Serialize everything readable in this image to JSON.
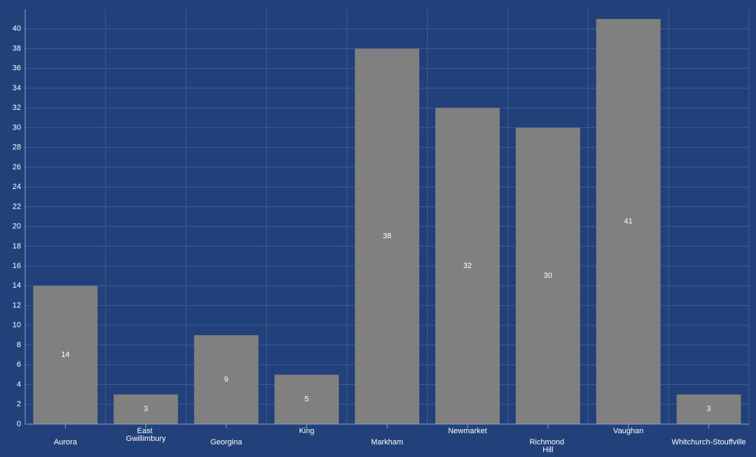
{
  "chart_data": {
    "type": "bar",
    "categories": [
      "Aurora",
      "East Gwillimbury",
      "Georgina",
      "King",
      "Markham",
      "Newmarket",
      "Richmond Hill",
      "Vaughan",
      "Whitchurch-Stouffville"
    ],
    "values": [
      14,
      3,
      9,
      5,
      38,
      32,
      30,
      41,
      3
    ],
    "color": "#808080",
    "ylim": [
      0,
      42
    ],
    "yticks": [
      0,
      2,
      4,
      6,
      8,
      10,
      12,
      14,
      16,
      18,
      20,
      22,
      24,
      26,
      28,
      30,
      32,
      34,
      36,
      38,
      40
    ],
    "grid": true
  }
}
